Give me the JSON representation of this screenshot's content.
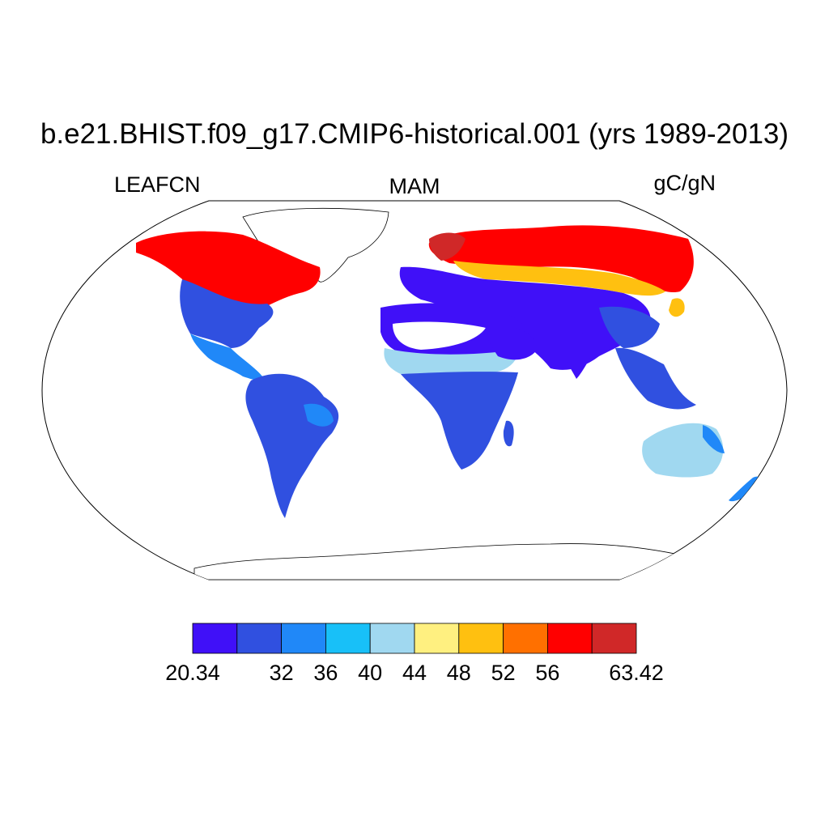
{
  "title": "b.e21.BHIST.f09_g17.CMIP6-historical.001 (yrs 1989-2013)",
  "subtitle_left": "LEAFCN",
  "subtitle_center": "MAM",
  "subtitle_right": "gC/gN",
  "colorbar": {
    "colors": [
      "#4010f8",
      "#3050e0",
      "#2088f8",
      "#18c0f8",
      "#a0d8f0",
      "#fff080",
      "#ffc010",
      "#ff7000",
      "#ff0000",
      "#d02828"
    ],
    "labels": [
      {
        "text": "20.34",
        "edge": 0
      },
      {
        "text": "32",
        "edge": 2
      },
      {
        "text": "36",
        "edge": 3
      },
      {
        "text": "40",
        "edge": 4
      },
      {
        "text": "44",
        "edge": 5
      },
      {
        "text": "48",
        "edge": 6
      },
      {
        "text": "52",
        "edge": 7
      },
      {
        "text": "56",
        "edge": 8
      },
      {
        "text": "63.42",
        "edge": 10
      }
    ]
  }
}
